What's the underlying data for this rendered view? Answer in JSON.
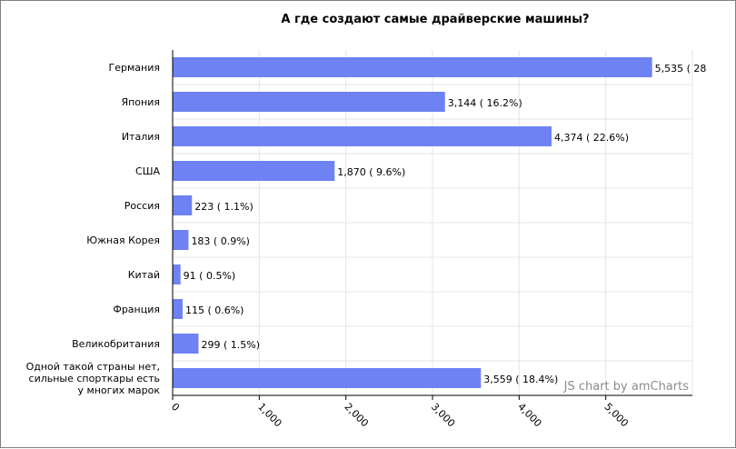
{
  "chart_data": {
    "type": "bar",
    "orientation": "horizontal",
    "title": "А где создают самые драйверские машины?",
    "categories": [
      "Германия",
      "Япония",
      "Италия",
      "США",
      "Россия",
      "Южная Корея",
      "Китай",
      "Франция",
      "Великобритания",
      "Одной такой страны нет, сильные спорткары есть у многих марок"
    ],
    "category_lines": [
      [
        "Германия"
      ],
      [
        "Япония"
      ],
      [
        "Италия"
      ],
      [
        "США"
      ],
      [
        "Россия"
      ],
      [
        "Южная Корея"
      ],
      [
        "Китай"
      ],
      [
        "Франция"
      ],
      [
        "Великобритания"
      ],
      [
        "Одной такой страны нет,",
        "сильные спорткары есть",
        "у многих марок"
      ]
    ],
    "values": [
      5535,
      3144,
      4374,
      1870,
      223,
      183,
      91,
      115,
      299,
      3559
    ],
    "data_labels": [
      "5,535 ( 28",
      "3,144 ( 16.2%)",
      "4,374 ( 22.6%)",
      "1,870 ( 9.6%)",
      "223 ( 1.1%)",
      "183 ( 0.9%)",
      "91 ( 0.5%)",
      "115 ( 0.6%)",
      "299 ( 1.5%)",
      "3,559 ( 18.4%)"
    ],
    "xlim": [
      0,
      6000
    ],
    "ticks": [
      0,
      1000,
      2000,
      3000,
      4000,
      5000
    ],
    "tick_labels": [
      "0",
      "1,000",
      "2,000",
      "3,000",
      "4,000",
      "5,000"
    ],
    "grid": true,
    "bar_color": "#6e82f4",
    "credit": "JS chart by amCharts"
  }
}
